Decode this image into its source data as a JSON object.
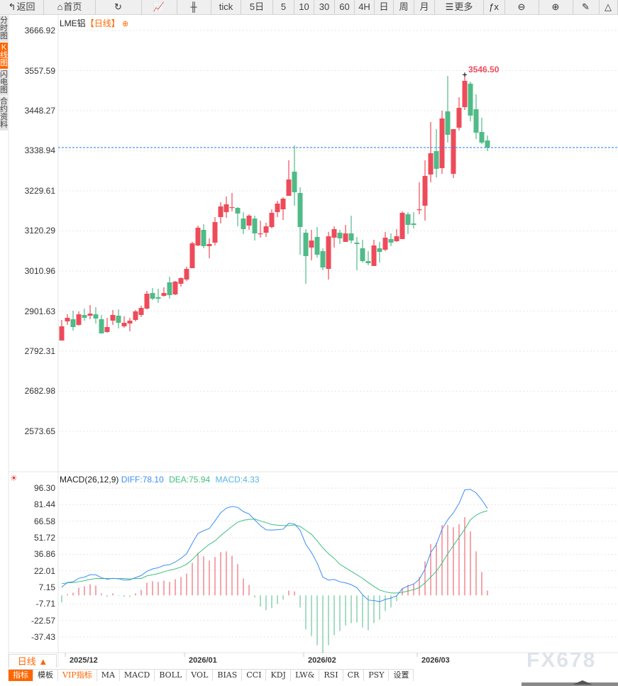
{
  "toolbar": [
    {
      "id": "back",
      "icon": "back-arrow-icon",
      "glyph": "↰",
      "label": "返回",
      "w": 62
    },
    {
      "id": "home",
      "icon": "home-icon",
      "glyph": "⌂",
      "label": "首页",
      "w": 73
    },
    {
      "id": "refresh",
      "icon": "refresh-icon",
      "glyph": "↻",
      "label": "",
      "w": 65
    },
    {
      "id": "line-chart",
      "icon": "line-chart-icon",
      "glyph": "📈",
      "label": "",
      "w": 50
    },
    {
      "id": "candle-chart",
      "icon": "candlestick-icon",
      "glyph": "╫",
      "label": "",
      "w": 48
    },
    {
      "id": "tick",
      "icon": "",
      "glyph": "",
      "label": "tick",
      "w": 42
    },
    {
      "id": "5day",
      "icon": "",
      "glyph": "",
      "label": "5日",
      "w": 45
    },
    {
      "id": "5",
      "icon": "",
      "glyph": "",
      "label": "5",
      "w": 30
    },
    {
      "id": "10",
      "icon": "",
      "glyph": "",
      "label": "10",
      "w": 28
    },
    {
      "id": "30",
      "icon": "",
      "glyph": "",
      "label": "30",
      "w": 29
    },
    {
      "id": "60",
      "icon": "",
      "glyph": "",
      "label": "60",
      "w": 28
    },
    {
      "id": "4h",
      "icon": "",
      "glyph": "",
      "label": "4H",
      "w": 28
    },
    {
      "id": "day",
      "icon": "",
      "glyph": "",
      "label": "日",
      "w": 27
    },
    {
      "id": "week",
      "icon": "",
      "glyph": "",
      "label": "周",
      "w": 29
    },
    {
      "id": "month",
      "icon": "",
      "glyph": "",
      "label": "月",
      "w": 29
    },
    {
      "id": "more",
      "icon": "menu-icon",
      "glyph": "☰",
      "label": "更多",
      "w": 69
    },
    {
      "id": "formula",
      "icon": "fx-icon",
      "glyph": "ƒx",
      "label": "",
      "w": 30
    },
    {
      "id": "zoom-out",
      "icon": "zoom-out-icon",
      "glyph": "⊖",
      "label": "",
      "w": 48
    },
    {
      "id": "zoom-in",
      "icon": "zoom-in-icon",
      "glyph": "⊕",
      "label": "",
      "w": 48
    },
    {
      "id": "draw",
      "icon": "pen-icon",
      "glyph": "✎",
      "label": "",
      "w": 37
    },
    {
      "id": "shape",
      "icon": "triangle-icon",
      "glyph": "△",
      "label": "",
      "w": 26
    }
  ],
  "left_tabs": [
    {
      "label": "分时图",
      "active": false
    },
    {
      "label": "K线图",
      "active": true
    },
    {
      "label": "闪电图",
      "active": false
    },
    {
      "label": "合约资料",
      "active": false
    }
  ],
  "chart": {
    "symbol": "LME铝",
    "period_tag": "【日线】",
    "high_label": "3546.50",
    "last_price_line": 3347.6,
    "y_ticks": [
      "3666.92",
      "3557.59",
      "3448.27",
      "3338.94",
      "3229.61",
      "3120.29",
      "3010.96",
      "2901.63",
      "2792.31",
      "2682.98",
      "2573.65"
    ],
    "colors": {
      "up": "#ee4b5a",
      "down": "#4fbb87",
      "diff": "#3a8ef6",
      "dea": "#3fbf7f",
      "last_line": "#1e7ee8",
      "macd_label": "#56b6e8"
    }
  },
  "chart_data": [
    {
      "type": "candlestick",
      "title": "LME铝【日线】",
      "ylim": [
        2573.65,
        3666.92
      ],
      "x_labels": [
        "2025/12",
        "2026/01",
        "2026/02",
        "2026/03"
      ],
      "x_label_index": [
        1,
        22,
        43,
        63
      ],
      "ohlc": [
        [
          2821.3,
          2860.0,
          2877.4,
          2821.3
        ],
        [
          2873.5,
          2883.2,
          2892.9,
          2863.9
        ],
        [
          2879.4,
          2858.1,
          2902.6,
          2848.4
        ],
        [
          2863.9,
          2892.9,
          2900.6,
          2861.9
        ],
        [
          2891.0,
          2883.2,
          2908.4,
          2875.5
        ],
        [
          2889.0,
          2894.8,
          2918.1,
          2879.4
        ],
        [
          2892.9,
          2881.3,
          2912.2,
          2867.7
        ],
        [
          2879.4,
          2840.7,
          2891.0,
          2840.7
        ],
        [
          2844.5,
          2858.1,
          2883.2,
          2842.6
        ],
        [
          2875.5,
          2891.0,
          2904.5,
          2863.9
        ],
        [
          2889.0,
          2869.7,
          2906.4,
          2854.2
        ],
        [
          2860.0,
          2869.7,
          2887.1,
          2856.1
        ],
        [
          2867.7,
          2875.5,
          2883.2,
          2846.5
        ],
        [
          2877.4,
          2900.6,
          2904.5,
          2873.5
        ],
        [
          2891.0,
          2910.3,
          2916.1,
          2885.1
        ],
        [
          2908.4,
          2949.0,
          2956.8,
          2906.4
        ],
        [
          2950.9,
          2935.5,
          2964.5,
          2931.6
        ],
        [
          2939.3,
          2935.5,
          2962.6,
          2923.9
        ],
        [
          2943.2,
          2950.9,
          2966.4,
          2941.3
        ],
        [
          2980.0,
          2945.1,
          2995.5,
          2935.5
        ],
        [
          2947.1,
          2981.9,
          2983.8,
          2945.1
        ],
        [
          2976.1,
          2991.6,
          2993.5,
          2968.4
        ],
        [
          2987.7,
          3016.7,
          3022.5,
          2983.8
        ],
        [
          3018.7,
          3086.4,
          3090.3,
          3018.7
        ],
        [
          3080.6,
          3129.0,
          3134.8,
          3078.7
        ],
        [
          3123.2,
          3078.7,
          3138.6,
          3072.9
        ],
        [
          3078.7,
          3084.5,
          3099.9,
          3045.8
        ],
        [
          3088.3,
          3144.4,
          3158.0,
          3080.6
        ],
        [
          3158.0,
          3187.0,
          3198.6,
          3140.6
        ],
        [
          3171.5,
          3192.8,
          3214.1,
          3156.1
        ],
        [
          3183.1,
          3185.1,
          3223.8,
          3173.5
        ],
        [
          3183.1,
          3167.7,
          3185.1,
          3132.8
        ],
        [
          3154.1,
          3125.1,
          3171.5,
          3111.6
        ],
        [
          3134.8,
          3161.9,
          3165.7,
          3123.2
        ],
        [
          3154.1,
          3113.5,
          3161.9,
          3094.1
        ],
        [
          3111.6,
          3113.5,
          3148.3,
          3101.9
        ],
        [
          3115.4,
          3132.8,
          3142.5,
          3103.8
        ],
        [
          3130.9,
          3169.6,
          3179.3,
          3127.0
        ],
        [
          3171.5,
          3194.8,
          3202.5,
          3158.0
        ],
        [
          3179.3,
          3208.3,
          3212.2,
          3150.3
        ],
        [
          3216.0,
          3260.5,
          3312.8,
          3216.0
        ],
        [
          3281.8,
          3225.7,
          3353.4,
          3189.0
        ],
        [
          3223.8,
          3130.9,
          3239.3,
          3055.4
        ],
        [
          3115.4,
          3051.6,
          3125.1,
          2976.1
        ],
        [
          3074.8,
          3094.1,
          3123.2,
          3040.0
        ],
        [
          3103.8,
          3055.4,
          3130.9,
          3047.7
        ],
        [
          3065.1,
          3020.6,
          3072.9,
          3012.9
        ],
        [
          3016.7,
          3105.7,
          3117.4,
          2987.7
        ],
        [
          3101.9,
          3125.1,
          3132.8,
          3074.8
        ],
        [
          3115.4,
          3099.9,
          3123.2,
          3084.5
        ],
        [
          3090.3,
          3113.5,
          3136.7,
          3090.3
        ],
        [
          3113.5,
          3094.1,
          3161.9,
          3086.4
        ],
        [
          3088.3,
          3084.5,
          3103.8,
          3012.9
        ],
        [
          3072.9,
          3038.0,
          3096.1,
          3034.1
        ],
        [
          3038.0,
          3032.2,
          3065.1,
          3026.4
        ],
        [
          3024.5,
          3080.6,
          3096.1,
          3024.5
        ],
        [
          3072.9,
          3063.2,
          3090.3,
          3034.1
        ],
        [
          3069.0,
          3101.9,
          3117.4,
          3065.1
        ],
        [
          3098.0,
          3088.3,
          3113.5,
          3078.7
        ],
        [
          3092.2,
          3105.7,
          3125.1,
          3090.3
        ],
        [
          3098.0,
          3169.6,
          3173.5,
          3098.0
        ],
        [
          3165.7,
          3136.7,
          3171.5,
          3111.6
        ],
        [
          3140.6,
          3136.7,
          3171.5,
          3127.0
        ],
        [
          3177.3,
          3179.3,
          3252.8,
          3165.7
        ],
        [
          3189.0,
          3270.2,
          3312.8,
          3148.3
        ],
        [
          3274.1,
          3332.1,
          3417.3,
          3252.8
        ],
        [
          3337.9,
          3289.6,
          3397.9,
          3266.4
        ],
        [
          3291.5,
          3427.0,
          3448.2,
          3276.0
        ],
        [
          3446.3,
          3382.5,
          3543.1,
          3361.2
        ],
        [
          3276.0,
          3397.9,
          3397.9,
          3264.4
        ],
        [
          3401.8,
          3456.0,
          3485.0,
          3394.1
        ],
        [
          3457.9,
          3529.5,
          3546.5,
          3450.2
        ],
        [
          3521.8,
          3434.7,
          3527.6,
          3419.2
        ],
        [
          3452.1,
          3388.3,
          3492.7,
          3370.8
        ],
        [
          3390.2,
          3361.2,
          3428.9,
          3357.3
        ],
        [
          3367.0,
          3347.6,
          3380.5,
          3337.9
        ]
      ]
    },
    {
      "type": "line+bar",
      "title": "MACD(26,12,9)",
      "legend": {
        "name": "MACD(26,12,9)",
        "diff": "DIFF:78.10",
        "dea": "DEA:75.94",
        "macd": "MACD:4.33"
      },
      "ylim": [
        -37.43,
        96.3
      ],
      "y_ticks": [
        "96.30",
        "81.44",
        "66.58",
        "51.72",
        "36.86",
        "22.01",
        "7.15",
        "-7.71",
        "-22.57",
        "-37.43"
      ],
      "diff": [
        7.4,
        11.5,
        12.2,
        15.3,
        16.4,
        18.5,
        18.5,
        15.8,
        14.5,
        15.3,
        14.9,
        13.7,
        13.9,
        16.0,
        17.8,
        21.6,
        23.7,
        24.8,
        26.9,
        27.5,
        30.0,
        33.2,
        37.4,
        46.8,
        55.6,
        58.0,
        60.0,
        66.8,
        74.1,
        78.3,
        79.8,
        79.0,
        75.2,
        73.1,
        67.8,
        62.6,
        58.8,
        58.6,
        59.0,
        59.4,
        64.7,
        64.1,
        58.4,
        45.8,
        38.4,
        29.0,
        16.4,
        13.7,
        14.3,
        12.2,
        11.2,
        9.6,
        6.9,
        0.6,
        -4.2,
        -4.6,
        -5.7,
        -3.6,
        -2.5,
        -0.4,
        5.9,
        8.4,
        10.1,
        14.3,
        23.7,
        38.4,
        45.8,
        59.4,
        67.8,
        74.1,
        82.5,
        94.7,
        95.1,
        92.0,
        85.7,
        78.1
      ],
      "dea": [
        10.5,
        11.2,
        11.5,
        12.2,
        13.2,
        14.3,
        15.1,
        15.1,
        15.1,
        15.1,
        15.1,
        15.1,
        14.7,
        15.1,
        15.1,
        17.5,
        18.5,
        19.5,
        21.2,
        22.7,
        23.7,
        25.4,
        27.9,
        32.1,
        37.4,
        41.6,
        45.8,
        48.9,
        53.6,
        57.8,
        61.9,
        65.7,
        67.4,
        68.2,
        68.5,
        66.8,
        65.3,
        63.6,
        63.0,
        62.6,
        62.6,
        63.2,
        61.9,
        58.4,
        54.8,
        48.9,
        42.6,
        37.4,
        33.2,
        27.9,
        24.8,
        21.6,
        18.5,
        15.3,
        11.5,
        8.0,
        4.8,
        3.2,
        2.1,
        2.1,
        2.7,
        3.8,
        5.2,
        6.9,
        11.2,
        16.4,
        21.6,
        29.0,
        37.4,
        44.7,
        52.1,
        59.4,
        67.8,
        72.0,
        74.5,
        75.9
      ],
      "macd": [
        -6.4,
        1.1,
        2.4,
        6.8,
        8.1,
        10.0,
        8.8,
        1.7,
        -1.3,
        1.7,
        -0.4,
        -1.3,
        -1.3,
        1.7,
        4.9,
        11.3,
        12.6,
        12.0,
        13.2,
        12.0,
        14.5,
        16.4,
        19.6,
        29.2,
        38.2,
        35.0,
        31.2,
        34.4,
        38.8,
        39.5,
        35.6,
        28.0,
        15.2,
        9.4,
        -1.9,
        -10.2,
        -13.4,
        -11.5,
        -7.7,
        -3.8,
        4.3,
        3.6,
        -10.9,
        -30.7,
        -36.5,
        -44.8,
        -51.8,
        -44.8,
        -35.8,
        -32.0,
        -26.9,
        -25.0,
        -24.3,
        -28.8,
        -31.4,
        -25.0,
        -21.8,
        -14.1,
        -10.9,
        -5.1,
        6.4,
        9.4,
        10.7,
        16.4,
        30.5,
        45.9,
        47.2,
        63.2,
        63.2,
        61.2,
        63.8,
        70.2,
        57.4,
        39.5,
        20.9,
        4.33
      ]
    }
  ],
  "bottom": {
    "period_button": "日线 ▲",
    "watermark": "FX678",
    "tabs": [
      {
        "label": "指标",
        "style": "active"
      },
      {
        "label": "模板",
        "style": ""
      },
      {
        "label": "VIP指标",
        "style": "vip"
      },
      {
        "label": "MA",
        "style": ""
      },
      {
        "label": "MACD",
        "style": ""
      },
      {
        "label": "BOLL",
        "style": ""
      },
      {
        "label": "VOL",
        "style": ""
      },
      {
        "label": "BIAS",
        "style": ""
      },
      {
        "label": "CCI",
        "style": ""
      },
      {
        "label": "KDJ",
        "style": ""
      },
      {
        "label": "LW&",
        "style": ""
      },
      {
        "label": "RSI",
        "style": ""
      },
      {
        "label": "CR",
        "style": ""
      },
      {
        "label": "PSY",
        "style": ""
      },
      {
        "label": "设置",
        "style": ""
      }
    ]
  }
}
